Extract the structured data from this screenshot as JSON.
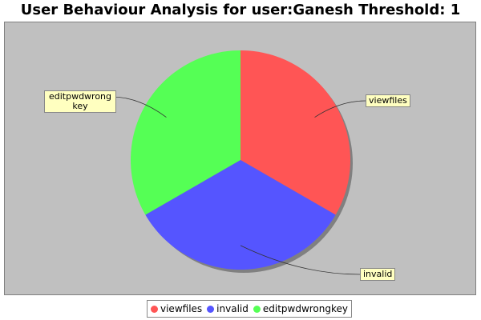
{
  "chart_data": {
    "type": "pie",
    "title": "User Behaviour Analysis for user:Ganesh Threshold: 1",
    "slices": [
      {
        "label": "viewfiles",
        "value": 1,
        "color": "#ff5555"
      },
      {
        "label": "invalid",
        "value": 1,
        "color": "#5555ff"
      },
      {
        "label": "editpwdwrongkey",
        "value": 1,
        "color": "#55ff55"
      }
    ],
    "callouts": {
      "viewfiles": "viewfiles",
      "invalid": "invalid",
      "editpwdwrongkey": "editpwdwrong key"
    },
    "legend": {
      "position": "bottom-center",
      "items": [
        "viewfiles",
        "invalid",
        "editpwdwrongkey"
      ]
    },
    "plot_background": "#c0c0c0"
  }
}
